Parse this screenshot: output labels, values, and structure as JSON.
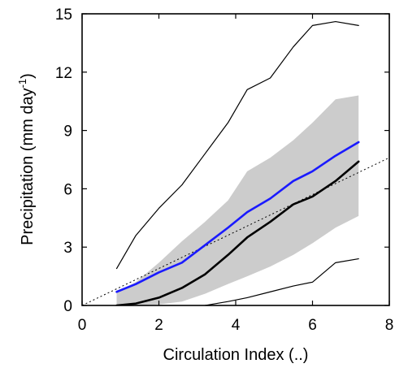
{
  "chart_data": {
    "type": "line",
    "title": "",
    "xlabel": "Circulation Index (..)",
    "ylabel_main": "Precipitation (mm day",
    "ylabel_sup": "-1",
    "ylabel_close": ")",
    "xlim": [
      0,
      8
    ],
    "ylim": [
      0,
      15
    ],
    "xticks": [
      0,
      2,
      4,
      6,
      8
    ],
    "yticks": [
      0,
      3,
      6,
      9,
      12,
      15
    ],
    "grid": false,
    "legend": "none",
    "colors": {
      "blue": "#1a1aff",
      "black": "#000000",
      "band": "#cccccc",
      "ref": "#000000"
    },
    "band": {
      "x": [
        0.9,
        1.4,
        2.0,
        2.6,
        3.2,
        3.8,
        4.3,
        4.9,
        5.5,
        6.0,
        6.6,
        7.2
      ],
      "lower": [
        0.0,
        0.0,
        0.05,
        0.2,
        0.6,
        1.1,
        1.5,
        2.0,
        2.6,
        3.2,
        4.0,
        4.6
      ],
      "upper": [
        0.7,
        1.2,
        2.2,
        3.3,
        4.3,
        5.4,
        6.9,
        7.6,
        8.5,
        9.4,
        10.6,
        10.8
      ]
    },
    "series": [
      {
        "x": [
          0.9,
          1.4,
          2.0,
          2.6,
          3.2,
          3.8,
          4.3,
          4.9,
          5.5,
          6.0,
          6.6,
          7.2
        ],
        "values": [
          0.7,
          1.1,
          1.7,
          2.2,
          3.1,
          4.0,
          4.8,
          5.5,
          6.4,
          6.9,
          7.7,
          8.4
        ],
        "color": "#1a1aff",
        "width": 2.6
      },
      {
        "x": [
          0.9,
          1.4,
          2.0,
          2.6,
          3.2,
          3.8,
          4.3,
          4.9,
          5.5,
          6.0,
          6.6,
          7.2
        ],
        "values": [
          0.0,
          0.1,
          0.4,
          0.9,
          1.6,
          2.6,
          3.5,
          4.3,
          5.2,
          5.6,
          6.4,
          7.4
        ],
        "color": "#000000",
        "width": 2.6
      },
      {
        "x": [
          0.9,
          1.4,
          2.0,
          2.6,
          3.2,
          3.8,
          4.3,
          4.9,
          5.5,
          6.0,
          6.6,
          7.2
        ],
        "values": [
          1.9,
          3.6,
          5.0,
          6.2,
          7.8,
          9.4,
          11.1,
          11.7,
          13.3,
          14.4,
          14.6,
          14.4
        ],
        "color": "#000000",
        "width": 1.2
      },
      {
        "x": [
          3.2,
          3.8,
          4.3,
          4.9,
          5.5,
          6.0,
          6.6,
          7.2
        ],
        "values": [
          0.0,
          0.2,
          0.4,
          0.7,
          1.0,
          1.2,
          2.2,
          2.4
        ],
        "color": "#000000",
        "width": 1.2
      }
    ],
    "reference_line": {
      "x": [
        0,
        8
      ],
      "values": [
        0,
        7.6
      ],
      "color": "#000000",
      "dash": "2,3"
    }
  }
}
